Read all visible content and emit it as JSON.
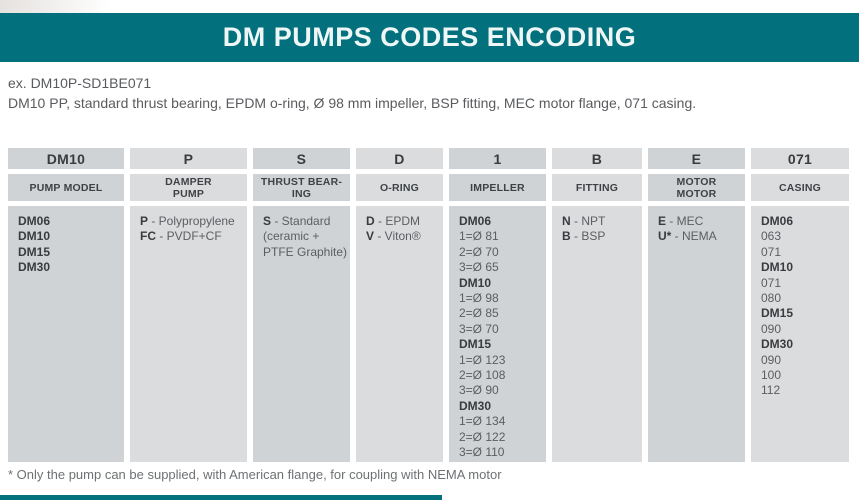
{
  "title": "DM PUMPS CODES ENCODING",
  "example": {
    "code": "ex. DM10P-SD1BE071",
    "description": "DM10 PP, standard thrust bearing, EPDM o-ring, Ø 98 mm impeller, BSP fitting, MEC motor flange, 071 casing."
  },
  "table": {
    "columns": [
      {
        "code": "DM10",
        "label": "PUMP MODEL",
        "lines": [
          {
            "bold": "DM06"
          },
          {
            "bold": "DM10"
          },
          {
            "bold": "DM15"
          },
          {
            "bold": "DM30"
          }
        ]
      },
      {
        "code": "P",
        "label": "DAMPER\nPUMP",
        "lines": [
          {
            "bold": "P",
            "rest": " - Polypropylene"
          },
          {
            "bold": "FC",
            "rest": " - PVDF+CF"
          }
        ]
      },
      {
        "code": "S",
        "label": "THRUST BEAR-\nING",
        "lines": [
          {
            "bold": "S",
            "rest": " - Standard"
          },
          {
            "rest": "(ceramic +"
          },
          {
            "rest": "PTFE Graphite)"
          }
        ]
      },
      {
        "code": "D",
        "label": "O-RING",
        "lines": [
          {
            "bold": "D",
            "rest": " - EPDM"
          },
          {
            "bold": "V",
            "rest": " - Viton®"
          }
        ]
      },
      {
        "code": "1",
        "label": "IMPELLER",
        "lines": [
          {
            "bold": "DM06"
          },
          {
            "rest": "1=Ø 81"
          },
          {
            "rest": "2=Ø 70"
          },
          {
            "rest": "3=Ø 65"
          },
          {
            "bold": "DM10"
          },
          {
            "rest": "1=Ø 98"
          },
          {
            "rest": "2=Ø 85"
          },
          {
            "rest": "3=Ø 70"
          },
          {
            "bold": "DM15"
          },
          {
            "rest": "1=Ø 123"
          },
          {
            "rest": "2=Ø 108"
          },
          {
            "rest": "3=Ø 90"
          },
          {
            "bold": "DM30"
          },
          {
            "rest": "1=Ø 134"
          },
          {
            "rest": "2=Ø 122"
          },
          {
            "rest": "3=Ø 110"
          }
        ]
      },
      {
        "code": "B",
        "label": "FITTING",
        "lines": [
          {
            "bold": "N",
            "rest": " - NPT"
          },
          {
            "bold": "B",
            "rest": " - BSP"
          }
        ]
      },
      {
        "code": "E",
        "label": "MOTOR\nMOTOR",
        "lines": [
          {
            "bold": "E",
            "rest": " - MEC"
          },
          {
            "bold": "U*",
            "rest": " - NEMA"
          }
        ]
      },
      {
        "code": "071",
        "label": "CASING",
        "lines": [
          {
            "bold": "DM06"
          },
          {
            "rest": "063"
          },
          {
            "rest": "071"
          },
          {
            "bold": "DM10"
          },
          {
            "rest": "071"
          },
          {
            "rest": "080"
          },
          {
            "bold": "DM15"
          },
          {
            "rest": "090"
          },
          {
            "bold": "DM30"
          },
          {
            "rest": "090"
          },
          {
            "rest": "100"
          },
          {
            "rest": "112"
          }
        ]
      }
    ]
  },
  "footnote": "* Only the pump can be supplied, with American flange, for coupling with NEMA motor",
  "colors": {
    "accent_teal": "#03717d",
    "cell_dark": "#d0d3d5",
    "cell_light": "#dbdcde",
    "text_bold": "#393c3f",
    "text_regular": "#5b5e61"
  }
}
